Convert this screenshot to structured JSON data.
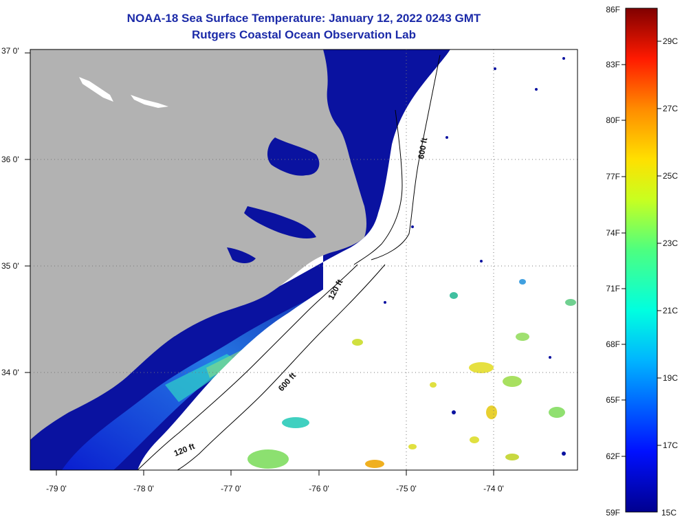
{
  "header": {
    "title": "NOAA-18 Sea Surface Temperature:  January 12, 2022 0243 GMT",
    "subtitle": "Rutgers Coastal Ocean Observation Lab"
  },
  "map": {
    "longitude_labels": [
      "-79 0'",
      "-78 0'",
      "-77 0'",
      "-76 0'",
      "-75 0'",
      "-74 0'"
    ],
    "latitude_labels": [
      "37 0'",
      "36 0'",
      "35 0'",
      "34 0'"
    ],
    "contour_labels": [
      "600 ft",
      "120 ft",
      "600 ft",
      "120 ft"
    ],
    "colors": {
      "land": "#b2b2b2",
      "cold_water": "#0a12a0",
      "no_data": "#ffffff",
      "contour": "#000000"
    }
  },
  "colorbar": {
    "fahrenheit_labels": [
      "86F",
      "83F",
      "80F",
      "77F",
      "74F",
      "71F",
      "68F",
      "65F",
      "62F",
      "59F"
    ],
    "celsius_labels": [
      "29C",
      "27C",
      "25C",
      "23C",
      "21C",
      "19C",
      "17C",
      "15C"
    ],
    "range_f": [
      59,
      86
    ],
    "range_c": [
      15,
      30
    ]
  }
}
